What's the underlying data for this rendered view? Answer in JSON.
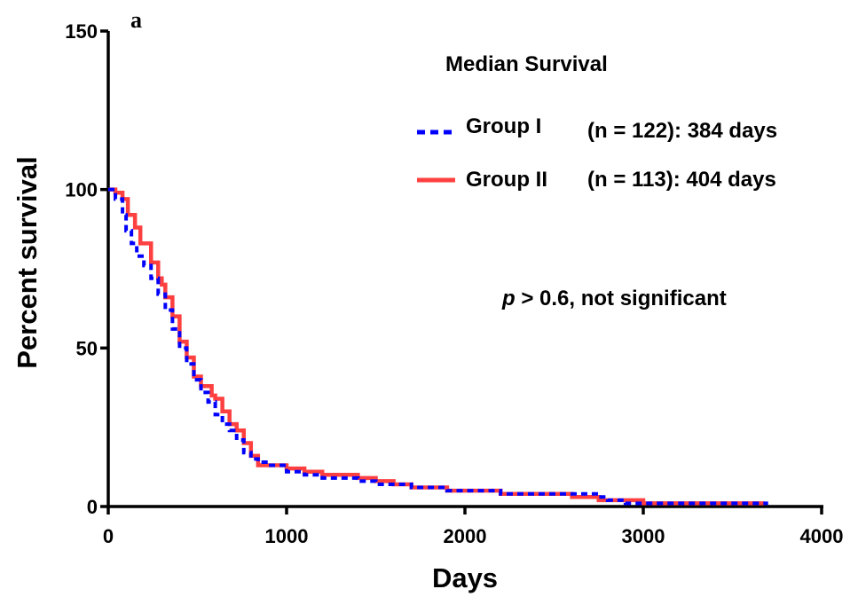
{
  "chart_data": {
    "type": "line",
    "panel_label": "a",
    "xlabel": "Days",
    "ylabel": "Percent survival",
    "xlim": [
      0,
      4000
    ],
    "ylim": [
      0,
      150
    ],
    "x_ticks": [
      0,
      1000,
      2000,
      3000,
      4000
    ],
    "y_ticks": [
      0,
      50,
      100,
      150
    ],
    "x_tick_labels": [
      "0",
      "1000",
      "2000",
      "3000",
      "4000"
    ],
    "y_tick_labels": [
      "0",
      "50",
      "100",
      "150"
    ],
    "grid": false,
    "legend_title": "Median Survival",
    "annotation_p": "p",
    "annotation_rest": " > 0.6, not significant",
    "series": [
      {
        "name": "Group I",
        "note": "(n = 122): 384 days",
        "color": "#0000ff",
        "style": "dashed",
        "x": [
          0,
          40,
          80,
          100,
          130,
          160,
          200,
          240,
          280,
          320,
          360,
          400,
          440,
          480,
          520,
          560,
          600,
          640,
          680,
          720,
          760,
          800,
          840,
          900,
          1000,
          1100,
          1200,
          1300,
          1400,
          1500,
          1600,
          1700,
          1800,
          1900,
          2000,
          2100,
          2200,
          2400,
          2500,
          2600,
          2750,
          2800,
          2900,
          3000,
          3300,
          3700
        ],
        "y": [
          100,
          97,
          92,
          87,
          83,
          79,
          76,
          72,
          67,
          62,
          56,
          50,
          45,
          40,
          36,
          33,
          29,
          26,
          24,
          21,
          17,
          15,
          14,
          13,
          11,
          10,
          9,
          9,
          8,
          7,
          7,
          6,
          6,
          5,
          5,
          5,
          4,
          4,
          4,
          4,
          3,
          2,
          1,
          1,
          1,
          1
        ]
      },
      {
        "name": "Group II",
        "note": "(n = 113): 404 days",
        "color": "#ff4040",
        "style": "solid",
        "x": [
          0,
          40,
          80,
          110,
          150,
          180,
          240,
          280,
          300,
          320,
          360,
          400,
          440,
          480,
          520,
          580,
          600,
          640,
          680,
          720,
          760,
          800,
          840,
          1000,
          1100,
          1200,
          1300,
          1400,
          1500,
          1600,
          1700,
          1800,
          1900,
          2000,
          2200,
          2400,
          2600,
          2750,
          3000,
          3300,
          3680
        ],
        "y": [
          100,
          99,
          97,
          92,
          88,
          83,
          77,
          72,
          70,
          66,
          60,
          52,
          47,
          41,
          38,
          35,
          34,
          30,
          26,
          24,
          20,
          16,
          13,
          12,
          11,
          10,
          10,
          9,
          8,
          7,
          6,
          6,
          5,
          5,
          4,
          4,
          3,
          2,
          1,
          1,
          1
        ]
      }
    ]
  }
}
